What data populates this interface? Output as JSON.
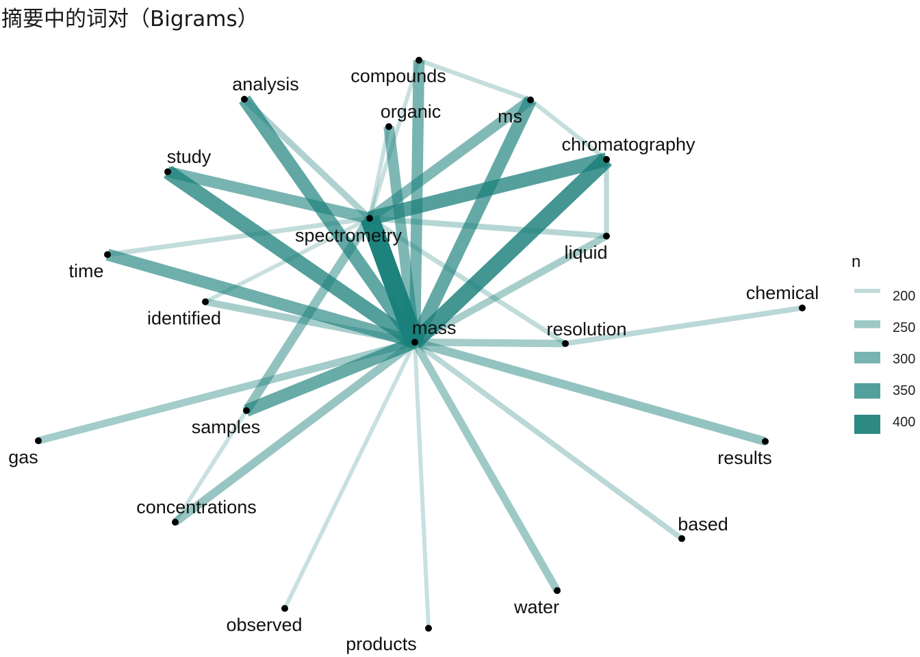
{
  "title": "摘要中的词对（Bigrams）",
  "edge_color": "#1a7f7a",
  "node_color": "#000000",
  "nodes": [
    {
      "id": "mass",
      "label": "mass"
    },
    {
      "id": "spectrometry",
      "label": "spectrometry"
    },
    {
      "id": "compounds",
      "label": "compounds"
    },
    {
      "id": "organic",
      "label": "organic"
    },
    {
      "id": "ms",
      "label": "ms"
    },
    {
      "id": "chromatography",
      "label": "chromatography"
    },
    {
      "id": "liquid",
      "label": "liquid"
    },
    {
      "id": "analysis",
      "label": "analysis"
    },
    {
      "id": "study",
      "label": "study"
    },
    {
      "id": "time",
      "label": "time"
    },
    {
      "id": "identified",
      "label": "identified"
    },
    {
      "id": "resolution",
      "label": "resolution"
    },
    {
      "id": "chemical",
      "label": "chemical"
    },
    {
      "id": "samples",
      "label": "samples"
    },
    {
      "id": "gas",
      "label": "gas"
    },
    {
      "id": "concentrations",
      "label": "concentrations"
    },
    {
      "id": "observed",
      "label": "observed"
    },
    {
      "id": "products",
      "label": "products"
    },
    {
      "id": "water",
      "label": "water"
    },
    {
      "id": "based",
      "label": "based"
    },
    {
      "id": "results",
      "label": "results"
    }
  ],
  "edges": [
    {
      "from": "mass",
      "to": "spectrometry",
      "n": 420
    },
    {
      "from": "mass",
      "to": "chromatography",
      "n": 370
    },
    {
      "from": "mass",
      "to": "study",
      "n": 350
    },
    {
      "from": "mass",
      "to": "analysis",
      "n": 330
    },
    {
      "from": "mass",
      "to": "ms",
      "n": 325
    },
    {
      "from": "mass",
      "to": "samples",
      "n": 320
    },
    {
      "from": "mass",
      "to": "time",
      "n": 310
    },
    {
      "from": "mass",
      "to": "compounds",
      "n": 300
    },
    {
      "from": "mass",
      "to": "organic",
      "n": 290
    },
    {
      "from": "spectrometry",
      "to": "chromatography",
      "n": 345
    },
    {
      "from": "spectrometry",
      "to": "study",
      "n": 300
    },
    {
      "from": "spectrometry",
      "to": "ms",
      "n": 285
    },
    {
      "from": "spectrometry",
      "to": "samples",
      "n": 265
    },
    {
      "from": "mass",
      "to": "results",
      "n": 260
    },
    {
      "from": "mass",
      "to": "concentrations",
      "n": 255
    },
    {
      "from": "mass",
      "to": "water",
      "n": 245
    },
    {
      "from": "mass",
      "to": "gas",
      "n": 240
    },
    {
      "from": "mass",
      "to": "resolution",
      "n": 240
    },
    {
      "from": "mass",
      "to": "identified",
      "n": 235
    },
    {
      "from": "mass",
      "to": "liquid",
      "n": 235
    },
    {
      "from": "spectrometry",
      "to": "analysis",
      "n": 225
    },
    {
      "from": "spectrometry",
      "to": "liquid",
      "n": 215
    },
    {
      "from": "mass",
      "to": "based",
      "n": 210
    },
    {
      "from": "resolution",
      "to": "chemical",
      "n": 210
    },
    {
      "from": "chromatography",
      "to": "liquid",
      "n": 205
    },
    {
      "from": "spectrometry",
      "to": "time",
      "n": 200
    },
    {
      "from": "spectrometry",
      "to": "resolution",
      "n": 200
    },
    {
      "from": "compounds",
      "to": "ms",
      "n": 195
    },
    {
      "from": "ms",
      "to": "chromatography",
      "n": 195
    },
    {
      "from": "spectrometry",
      "to": "identified",
      "n": 190
    },
    {
      "from": "spectrometry",
      "to": "compounds",
      "n": 190
    },
    {
      "from": "spectrometry",
      "to": "organic",
      "n": 190
    },
    {
      "from": "mass",
      "to": "observed",
      "n": 190
    },
    {
      "from": "mass",
      "to": "products",
      "n": 190
    },
    {
      "from": "samples",
      "to": "concentrations",
      "n": 190
    }
  ],
  "legend": {
    "title": "n",
    "items": [
      {
        "label": "200",
        "n": 200
      },
      {
        "label": "250",
        "n": 250
      },
      {
        "label": "300",
        "n": 300
      },
      {
        "label": "350",
        "n": 350
      },
      {
        "label": "400",
        "n": 400
      }
    ]
  }
}
